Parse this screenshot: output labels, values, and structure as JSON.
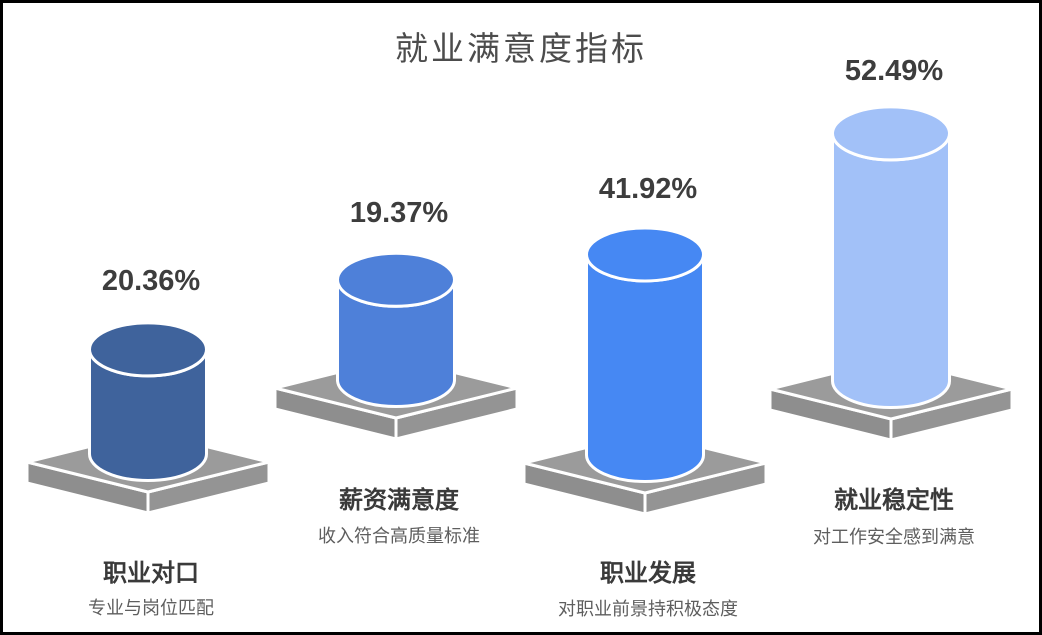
{
  "page": {
    "background_color": "#ffffff",
    "border_color": "#000000"
  },
  "chart_data": {
    "type": "bar",
    "subtype": "3d-cylinder-pictogram",
    "title": "就业满意度指标",
    "unit": "%",
    "legend": "none",
    "axes": "none (free-standing cylinders on gray 3D pedestals, staggered low/high baseline)",
    "categories": [
      "职业对口",
      "薪资满意度",
      "职业发展",
      "就业稳定性"
    ],
    "values": [
      20.36,
      19.37,
      41.92,
      52.49
    ],
    "items": [
      {
        "label": "职业对口",
        "sublabel": "专业与岗位匹配",
        "value": 20.36,
        "value_label": "20.36%",
        "color": "#3F639C"
      },
      {
        "label": "薪资满意度",
        "sublabel": "收入符合高质量标准",
        "value": 19.37,
        "value_label": "19.37%",
        "color": "#4E80D9"
      },
      {
        "label": "职业发展",
        "sublabel": "对职业前景持积极态度",
        "value": 41.92,
        "value_label": "41.92%",
        "color": "#4688F3"
      },
      {
        "label": "就业稳定性",
        "sublabel": "对工作安全感到满意",
        "value": 52.49,
        "value_label": "52.49%",
        "color": "#A2C1F8"
      }
    ],
    "pedestal_colors": {
      "top": "#9B9B9B",
      "left": "#8E8E8E",
      "right": "#949494",
      "edge": "#FFFFFF"
    },
    "text_colors": {
      "title": "#4c4c4c",
      "value": "#3d3d3d",
      "category": "#3a3a3a",
      "sublabel": "#5e5e5e"
    }
  }
}
